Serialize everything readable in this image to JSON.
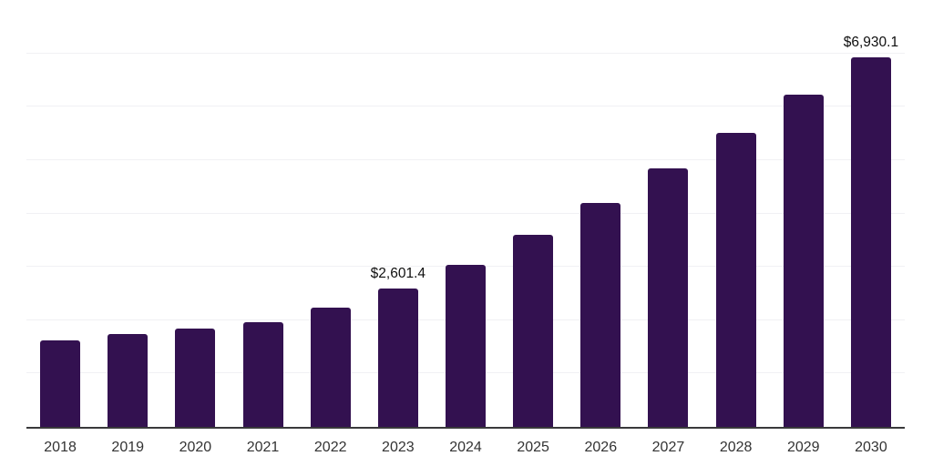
{
  "chart_data": {
    "type": "bar",
    "title": "",
    "xlabel": "",
    "ylabel": "",
    "categories": [
      "2018",
      "2019",
      "2020",
      "2021",
      "2022",
      "2023",
      "2024",
      "2025",
      "2026",
      "2027",
      "2028",
      "2029",
      "2030"
    ],
    "values": [
      1620,
      1740,
      1840,
      1960,
      2230,
      2601.4,
      3035,
      3595,
      4190,
      4840,
      5505,
      6220,
      6930.1
    ],
    "data_labels": {
      "2023": "$2,601.4",
      "2030": "$6,930.1"
    },
    "ylim": [
      0,
      8000
    ],
    "gridline_step": 1000,
    "grid": "horizontal-only",
    "legend": "none",
    "y_axis_tick_labels": "none",
    "colors": {
      "bar": "#331150",
      "axis_line": "#39393b",
      "gridline": "#f1f1f4",
      "x_tick_label": "#333333",
      "value_label": "#0f0f0f"
    }
  }
}
